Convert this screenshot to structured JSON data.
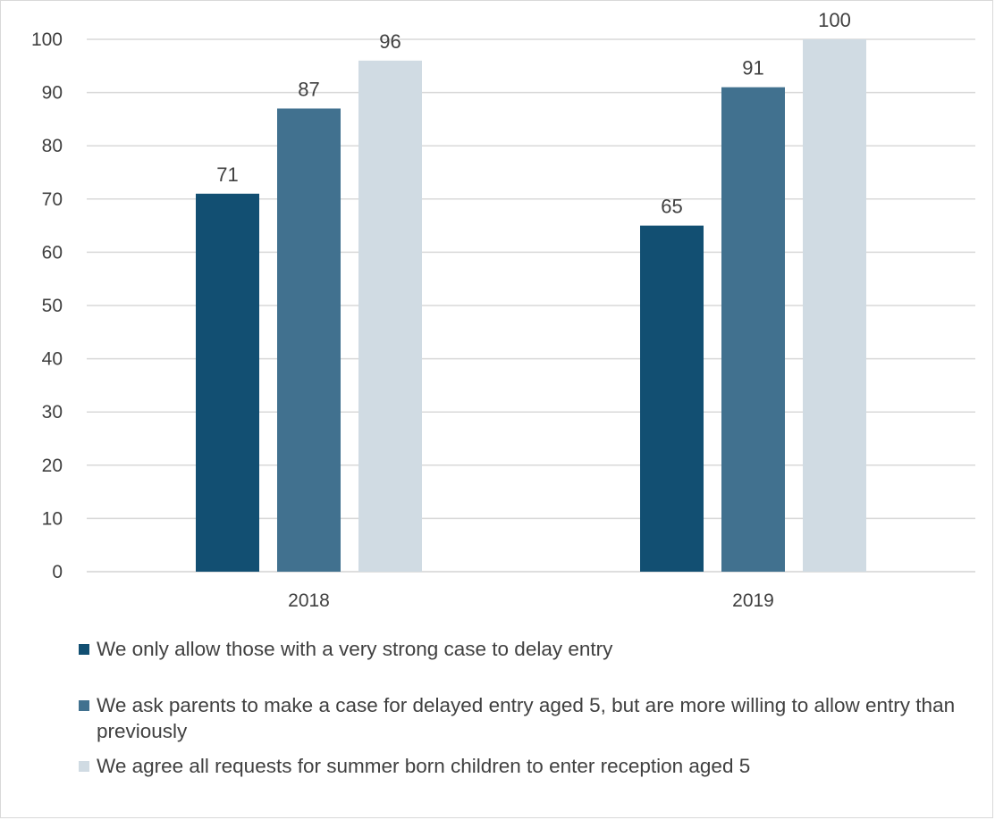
{
  "chart_data": {
    "type": "bar",
    "categories": [
      "2018",
      "2019"
    ],
    "series": [
      {
        "name": "We only allow those with a very strong case to delay entry",
        "values": [
          71,
          65
        ],
        "color": "#124f72"
      },
      {
        "name": "We ask parents to make a case for delayed entry aged 5, but are more willing to allow entry than previously",
        "values": [
          87,
          91
        ],
        "color": "#41718f"
      },
      {
        "name": "We agree all requests for summer born children to enter reception aged 5",
        "values": [
          96,
          100
        ],
        "color": "#d0dbe3"
      }
    ],
    "ylim": [
      0,
      100
    ],
    "yticks": [
      "0",
      "10",
      "20",
      "30",
      "40",
      "50",
      "60",
      "70",
      "80",
      "90",
      "100"
    ],
    "grid": true,
    "legend_position": "bottom",
    "data_labels": true
  }
}
